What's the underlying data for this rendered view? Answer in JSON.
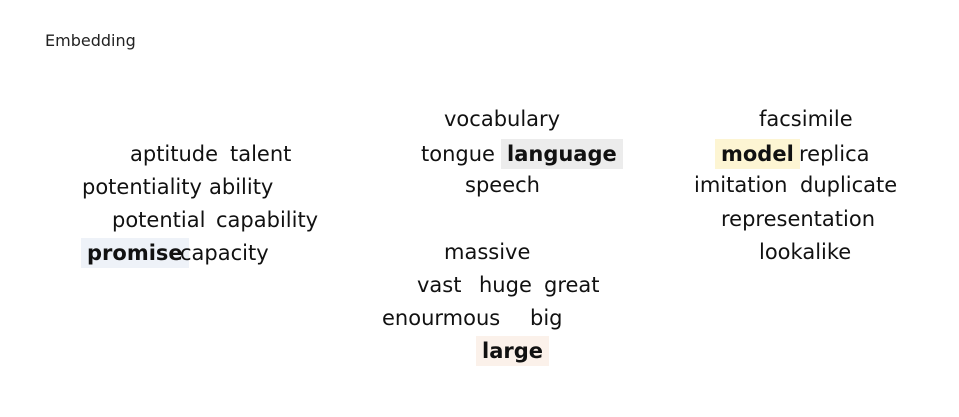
{
  "title": "Embedding",
  "colors": {
    "promise_highlight": "#eef2f8",
    "language_highlight": "#ececec",
    "model_highlight": "#fdf5d3",
    "large_highlight": "#fbf1ea"
  },
  "clusters": {
    "promise": [
      "aptitude",
      "talent",
      "potentiality",
      "ability",
      "potential",
      "capability",
      "promise",
      "capacity"
    ],
    "language": [
      "vocabulary",
      "tongue",
      "language",
      "speech"
    ],
    "model": [
      "facsimile",
      "model",
      "replica",
      "imitation",
      "duplicate",
      "representation",
      "lookalike"
    ],
    "large": [
      "massive",
      "vast",
      "huge",
      "great",
      "enourmous",
      "big",
      "large"
    ]
  }
}
